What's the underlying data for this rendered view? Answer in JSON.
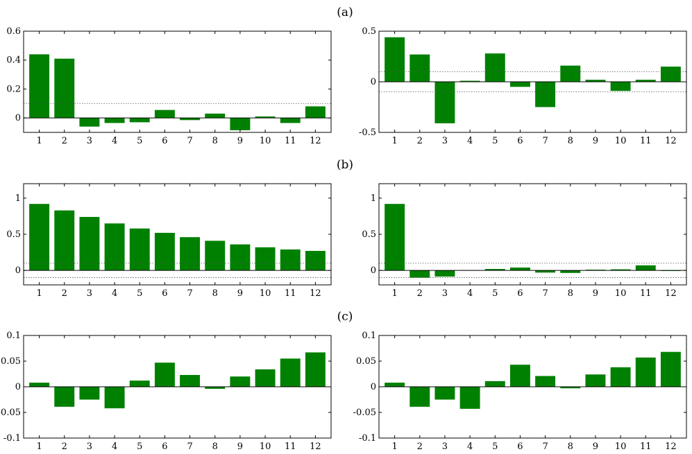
{
  "colors": {
    "bar": "#008000",
    "axis": "#000000",
    "band": "#555555"
  },
  "panel_labels": [
    "(a)",
    "(b)",
    "(c)"
  ],
  "chart_data": [
    {
      "type": "bar",
      "row_label": "(a)",
      "categories": [
        "1",
        "2",
        "3",
        "4",
        "5",
        "6",
        "7",
        "8",
        "9",
        "10",
        "11",
        "12"
      ],
      "values": [
        0.44,
        0.41,
        -0.06,
        -0.035,
        -0.03,
        0.055,
        -0.015,
        0.03,
        -0.085,
        0.01,
        -0.035,
        0.08
      ],
      "ylim": [
        -0.1,
        0.6
      ],
      "yticks": [
        0,
        0.2,
        0.4,
        0.6
      ],
      "ytick_labels": [
        "0",
        "0.2",
        "0.4",
        "0.6"
      ],
      "bands": [
        0.1
      ],
      "title": "",
      "xlabel": "",
      "ylabel": "",
      "grid": false
    },
    {
      "type": "bar",
      "row_label": "(a)",
      "categories": [
        "1",
        "2",
        "3",
        "4",
        "5",
        "6",
        "7",
        "8",
        "9",
        "10",
        "11",
        "12"
      ],
      "values": [
        0.44,
        0.27,
        -0.41,
        0.01,
        0.28,
        -0.05,
        -0.25,
        0.16,
        0.02,
        -0.09,
        0.02,
        0.15
      ],
      "ylim": [
        -0.5,
        0.5
      ],
      "yticks": [
        -0.5,
        0,
        0.5
      ],
      "ytick_labels": [
        "-0.5",
        "0",
        "0.5"
      ],
      "bands": [
        0.1,
        -0.1
      ],
      "title": "",
      "xlabel": "",
      "ylabel": "",
      "grid": false
    },
    {
      "type": "bar",
      "row_label": "(b)",
      "categories": [
        "1",
        "2",
        "3",
        "4",
        "5",
        "6",
        "7",
        "8",
        "9",
        "10",
        "11",
        "12"
      ],
      "values": [
        0.92,
        0.83,
        0.74,
        0.65,
        0.58,
        0.52,
        0.46,
        0.41,
        0.36,
        0.32,
        0.29,
        0.27
      ],
      "ylim": [
        -0.2,
        1.2
      ],
      "yticks": [
        0,
        0.5,
        1
      ],
      "ytick_labels": [
        "0",
        "0.5",
        "1"
      ],
      "bands": [
        0.1,
        -0.1
      ],
      "title": "",
      "xlabel": "",
      "ylabel": "",
      "grid": false
    },
    {
      "type": "bar",
      "row_label": "(b)",
      "categories": [
        "1",
        "2",
        "3",
        "4",
        "5",
        "6",
        "7",
        "8",
        "9",
        "10",
        "11",
        "12"
      ],
      "values": [
        0.92,
        -0.1,
        -0.085,
        0.005,
        0.02,
        0.04,
        -0.03,
        -0.035,
        0.01,
        0.015,
        0.07,
        -0.005
      ],
      "ylim": [
        -0.2,
        1.2
      ],
      "yticks": [
        0,
        0.5,
        1
      ],
      "ytick_labels": [
        "0",
        "0.5",
        "1"
      ],
      "bands": [
        0.1,
        -0.1
      ],
      "title": "",
      "xlabel": "",
      "ylabel": "",
      "grid": false
    },
    {
      "type": "bar",
      "row_label": "(c)",
      "categories": [
        "1",
        "2",
        "3",
        "4",
        "5",
        "6",
        "7",
        "8",
        "9",
        "10",
        "11",
        "12"
      ],
      "values": [
        0.008,
        -0.039,
        -0.025,
        -0.042,
        0.012,
        0.047,
        0.023,
        -0.004,
        0.02,
        0.034,
        0.055,
        0.067
      ],
      "ylim": [
        -0.1,
        0.1
      ],
      "yticks": [
        -0.1,
        -0.05,
        0,
        0.05,
        0.1
      ],
      "ytick_labels": [
        "-0.1",
        "-0.05",
        "0",
        "0.05",
        "0.1"
      ],
      "bands": [],
      "title": "",
      "xlabel": "",
      "ylabel": "",
      "grid": false
    },
    {
      "type": "bar",
      "row_label": "(c)",
      "categories": [
        "1",
        "2",
        "3",
        "4",
        "5",
        "6",
        "7",
        "8",
        "9",
        "10",
        "11",
        "12"
      ],
      "values": [
        0.008,
        -0.039,
        -0.025,
        -0.043,
        0.011,
        0.043,
        0.021,
        -0.003,
        0.024,
        0.038,
        0.057,
        0.068
      ],
      "ylim": [
        -0.1,
        0.1
      ],
      "yticks": [
        -0.1,
        -0.05,
        0,
        0.05,
        0.1
      ],
      "ytick_labels": [
        "-0.1",
        "-0.05",
        "0",
        "0.05",
        "0.1"
      ],
      "bands": [],
      "title": "",
      "xlabel": "",
      "ylabel": "",
      "grid": false
    }
  ]
}
